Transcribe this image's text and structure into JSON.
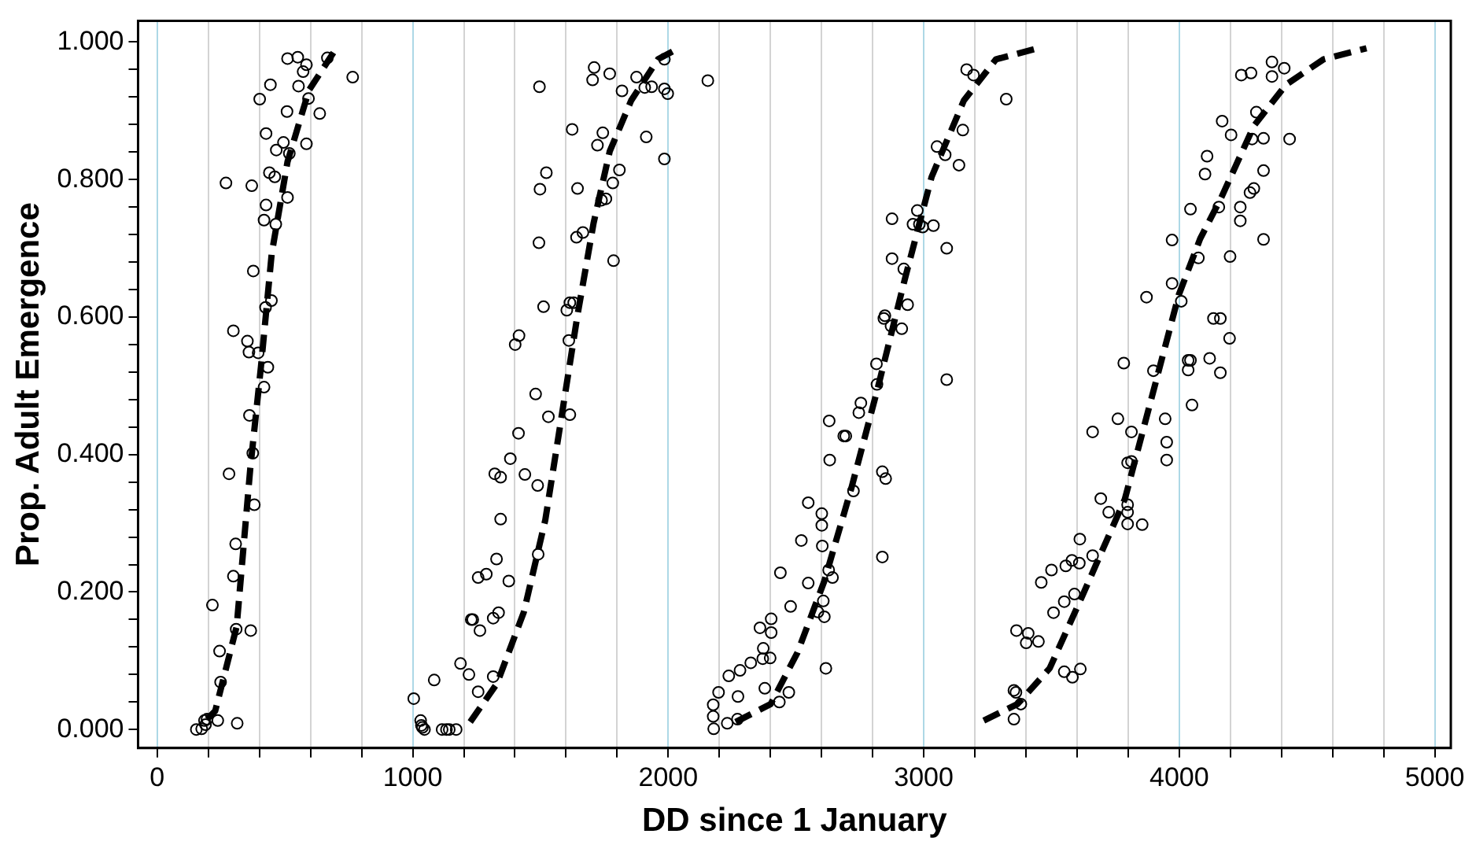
{
  "chart_data": {
    "type": "scatter",
    "xlabel": "DD since 1 January",
    "ylabel": "Prop. Adult Emergence",
    "xlim": [
      -75,
      5063
    ],
    "ylim": [
      -0.027,
      1.031
    ],
    "grid": "x",
    "xticks": [
      0,
      {
        "value": 200,
        "label": null
      },
      {
        "value": 400,
        "label": null
      },
      {
        "value": 600,
        "label": null
      },
      {
        "value": 800,
        "label": null
      },
      1000,
      {
        "value": 1200,
        "label": null
      },
      {
        "value": 1400,
        "label": null
      },
      {
        "value": 1600,
        "label": null
      },
      {
        "value": 1800,
        "label": null
      },
      2000,
      {
        "value": 2200,
        "label": null
      },
      {
        "value": 2400,
        "label": null
      },
      {
        "value": 2600,
        "label": null
      },
      {
        "value": 2800,
        "label": null
      },
      3000,
      {
        "value": 3200,
        "label": null
      },
      {
        "value": 3400,
        "label": null
      },
      {
        "value": 3600,
        "label": null
      },
      {
        "value": 3800,
        "label": null
      },
      4000,
      {
        "value": 4200,
        "label": null
      },
      {
        "value": 4400,
        "label": null
      },
      {
        "value": 4600,
        "label": null
      },
      {
        "value": 4800,
        "label": null
      },
      5000
    ],
    "yticks": [
      {
        "value": 0,
        "label": "0.000"
      },
      {
        "value": 0.04,
        "label": null
      },
      {
        "value": 0.08,
        "label": null
      },
      {
        "value": 0.12,
        "label": null
      },
      {
        "value": 0.16,
        "label": null
      },
      {
        "value": 0.2,
        "label": "0.200"
      },
      {
        "value": 0.24,
        "label": null
      },
      {
        "value": 0.28,
        "label": null
      },
      {
        "value": 0.32,
        "label": null
      },
      {
        "value": 0.36,
        "label": null
      },
      {
        "value": 0.4,
        "label": "0.400"
      },
      {
        "value": 0.44,
        "label": null
      },
      {
        "value": 0.48,
        "label": null
      },
      {
        "value": 0.52,
        "label": null
      },
      {
        "value": 0.56,
        "label": null
      },
      {
        "value": 0.6,
        "label": "0.600"
      },
      {
        "value": 0.64,
        "label": null
      },
      {
        "value": 0.68,
        "label": null
      },
      {
        "value": 0.72,
        "label": null
      },
      {
        "value": 0.76,
        "label": null
      },
      {
        "value": 0.8,
        "label": "0.800"
      },
      {
        "value": 0.84,
        "label": null
      },
      {
        "value": 0.88,
        "label": null
      },
      {
        "value": 0.92,
        "label": null
      },
      {
        "value": 0.96,
        "label": null
      },
      {
        "value": 1,
        "label": "1.000"
      }
    ],
    "series": [
      {
        "type": "scatter",
        "color": "#000000",
        "marker": "circle",
        "x": [
          153,
          174,
          189,
          185,
          195,
          237,
          313,
          248,
          244,
          216,
          309,
          366,
          298,
          307,
          281,
          380,
          374,
          361,
          418,
          433,
          395,
          359,
          353,
          298,
          424,
          447,
          376,
          464,
          418,
          426,
          269,
          370,
          439,
          460,
          510,
          494,
          466,
          517,
          426,
          584,
          508,
          636,
          401,
          443,
          592,
          553,
          571,
          584,
          510,
          550,
          666,
          765,
          1004,
          1031,
          1034,
          1038,
          1046,
          1115,
          1132,
          1143,
          1170,
          1084,
          1187,
          1220,
          1256,
          1315,
          1229,
          1235,
          1263,
          1315,
          1336,
          1256,
          1288,
          1328,
          1376,
          1344,
          1321,
          1344,
          1439,
          1489,
          1382,
          1414,
          1481,
          1531,
          1615,
          1491,
          1401,
          1416,
          1512,
          1603,
          1615,
          1630,
          1611,
          1494,
          1641,
          1666,
          1786,
          1498,
          1523,
          1645,
          1809,
          1783,
          1739,
          1756,
          1624,
          1744,
          1723,
          1496,
          1704,
          1710,
          1771,
          1819,
          1876,
          1908,
          1935,
          1914,
          1985,
          1998,
          1985,
          2155,
          1985,
          2176,
          2176,
          2178,
          2231,
          2271,
          2197,
          2273,
          2237,
          2281,
          2323,
          2359,
          2372,
          2403,
          2403,
          2370,
          2399,
          2378,
          2435,
          2472,
          2439,
          2479,
          2521,
          2548,
          2548,
          2601,
          2601,
          2603,
          2628,
          2643,
          2586,
          2607,
          2611,
          2617,
          2630,
          2632,
          2687,
          2695,
          2725,
          2746,
          2754,
          2815,
          2817,
          2838,
          2851,
          2838,
          2848,
          2844,
          2872,
          2914,
          2937,
          2922,
          2876,
          2876,
          2958,
          2975,
          2983,
          2996,
          3038,
          3090,
          3090,
          3052,
          3084,
          3138,
          3153,
          3168,
          3195,
          3323,
          3353,
          3353,
          3361,
          3380,
          3363,
          3401,
          3409,
          3449,
          3460,
          3500,
          3508,
          3550,
          3550,
          3582,
          3613,
          3590,
          3556,
          3580,
          3609,
          3611,
          3661,
          3693,
          3724,
          3661,
          3798,
          3813,
          3813,
          3798,
          3798,
          3798,
          3855,
          3760,
          3783,
          3872,
          3899,
          3945,
          3951,
          3951,
          3972,
          3972,
          4008,
          4035,
          4044,
          4035,
          4050,
          4044,
          4075,
          4101,
          4109,
          4119,
          4134,
          4161,
          4161,
          4197,
          4199,
          4155,
          4168,
          4203,
          4239,
          4239,
          4277,
          4292,
          4285,
          4330,
          4330,
          4330,
          4302,
          4243,
          4281,
          4363,
          4363,
          4411,
          4432
        ],
        "values": [
          0.0,
          0.001,
          0.007,
          0.013,
          0.015,
          0.013,
          0.009,
          0.069,
          0.114,
          0.181,
          0.146,
          0.144,
          0.223,
          0.27,
          0.372,
          0.327,
          0.402,
          0.457,
          0.498,
          0.527,
          0.548,
          0.549,
          0.565,
          0.58,
          0.614,
          0.624,
          0.667,
          0.735,
          0.741,
          0.763,
          0.795,
          0.791,
          0.81,
          0.804,
          0.774,
          0.854,
          0.843,
          0.838,
          0.867,
          0.852,
          0.899,
          0.896,
          0.917,
          0.938,
          0.918,
          0.936,
          0.957,
          0.967,
          0.976,
          0.978,
          0.977,
          0.949,
          0.045,
          0.013,
          0.006,
          0.003,
          0.0,
          0.0,
          0.0,
          0.0,
          0.0,
          0.072,
          0.096,
          0.08,
          0.055,
          0.077,
          0.16,
          0.16,
          0.144,
          0.162,
          0.17,
          0.221,
          0.226,
          0.248,
          0.216,
          0.306,
          0.372,
          0.367,
          0.371,
          0.355,
          0.394,
          0.431,
          0.488,
          0.455,
          0.458,
          0.255,
          0.56,
          0.573,
          0.615,
          0.61,
          0.621,
          0.621,
          0.566,
          0.708,
          0.716,
          0.723,
          0.682,
          0.786,
          0.81,
          0.787,
          0.814,
          0.795,
          0.77,
          0.772,
          0.873,
          0.868,
          0.85,
          0.935,
          0.945,
          0.963,
          0.954,
          0.929,
          0.949,
          0.934,
          0.935,
          0.862,
          0.932,
          0.925,
          0.83,
          0.944,
          0.975,
          0.036,
          0.019,
          0.001,
          0.009,
          0.015,
          0.054,
          0.048,
          0.078,
          0.086,
          0.097,
          0.148,
          0.118,
          0.161,
          0.141,
          0.103,
          0.104,
          0.06,
          0.04,
          0.054,
          0.228,
          0.179,
          0.275,
          0.33,
          0.213,
          0.314,
          0.297,
          0.267,
          0.232,
          0.221,
          0.171,
          0.187,
          0.164,
          0.089,
          0.449,
          0.392,
          0.427,
          0.427,
          0.347,
          0.461,
          0.475,
          0.532,
          0.502,
          0.375,
          0.365,
          0.251,
          0.602,
          0.598,
          0.587,
          0.583,
          0.618,
          0.67,
          0.685,
          0.743,
          0.735,
          0.755,
          0.735,
          0.731,
          0.733,
          0.7,
          0.509,
          0.848,
          0.836,
          0.821,
          0.872,
          0.96,
          0.952,
          0.917,
          0.015,
          0.057,
          0.054,
          0.037,
          0.144,
          0.126,
          0.14,
          0.128,
          0.214,
          0.232,
          0.17,
          0.186,
          0.084,
          0.076,
          0.088,
          0.197,
          0.238,
          0.246,
          0.242,
          0.277,
          0.433,
          0.336,
          0.316,
          0.253,
          0.388,
          0.39,
          0.433,
          0.327,
          0.316,
          0.299,
          0.298,
          0.452,
          0.533,
          0.629,
          0.522,
          0.452,
          0.418,
          0.392,
          0.649,
          0.712,
          0.623,
          0.537,
          0.537,
          0.523,
          0.472,
          0.757,
          0.686,
          0.808,
          0.834,
          0.54,
          0.598,
          0.598,
          0.519,
          0.569,
          0.688,
          0.76,
          0.885,
          0.865,
          0.76,
          0.74,
          0.781,
          0.787,
          0.859,
          0.86,
          0.813,
          0.713,
          0.898,
          0.952,
          0.955,
          0.971,
          0.95,
          0.962,
          0.859
        ]
      },
      {
        "type": "line",
        "color": "#000000",
        "line_style": "dashed",
        "x": [
          195,
          227,
          311,
          364,
          406,
          448,
          510,
          594,
          699
        ],
        "values": [
          0.015,
          0.027,
          0.15,
          0.379,
          0.528,
          0.692,
          0.826,
          0.93,
          0.99
        ]
      },
      {
        "type": "line",
        "color": "#000000",
        "line_style": "dashed",
        "x": [
          1225,
          1330,
          1435,
          1519,
          1582,
          1645,
          1708,
          1771,
          1855,
          1960,
          2040
        ],
        "values": [
          0.011,
          0.067,
          0.171,
          0.305,
          0.454,
          0.603,
          0.737,
          0.841,
          0.915,
          0.975,
          0.991
        ]
      },
      {
        "type": "line",
        "color": "#000000",
        "line_style": "dashed",
        "x": [
          2264,
          2401,
          2506,
          2611,
          2716,
          2821,
          2926,
          3031,
          3157,
          3283,
          3447
        ],
        "values": [
          0.011,
          0.037,
          0.112,
          0.216,
          0.35,
          0.498,
          0.655,
          0.804,
          0.915,
          0.975,
          0.991
        ]
      },
      {
        "type": "line",
        "color": "#000000",
        "line_style": "dashed",
        "x": [
          3235,
          3367,
          3493,
          3619,
          3787,
          3893,
          3998,
          4082,
          4165,
          4292,
          4418,
          4565,
          4733
        ],
        "values": [
          0.013,
          0.037,
          0.089,
          0.193,
          0.335,
          0.484,
          0.632,
          0.714,
          0.774,
          0.878,
          0.938,
          0.975,
          0.991
        ]
      }
    ]
  }
}
